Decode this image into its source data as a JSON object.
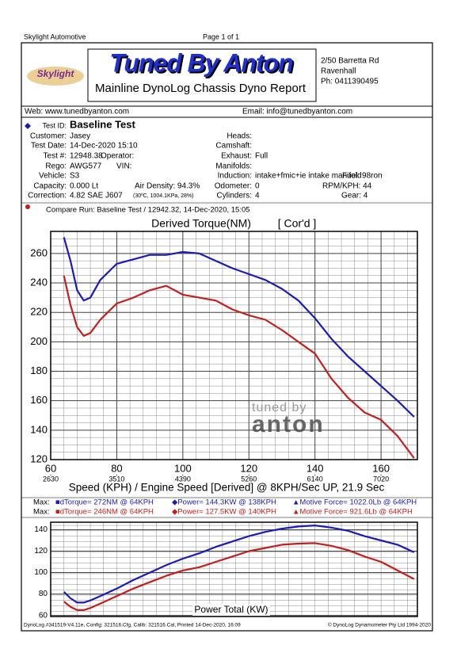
{
  "header": {
    "company": "Skylight Automotive",
    "page": "Page 1 of 1"
  },
  "logo": {
    "brand": "Skylight",
    "title": "Tuned By Anton",
    "subtitle": "Mainline DynoLog Chassis Dyno Report",
    "address": [
      "2/50 Barretta Rd",
      "Ravenhall",
      "Ph: 0411390495"
    ]
  },
  "contact": {
    "web": "Web: www.tunedbyanton.com",
    "email": "Email: info@tunedbyanton.com"
  },
  "test": {
    "id_label": "Test ID:",
    "id": "Baseline Test",
    "left": [
      {
        "label": "Customer:",
        "value": "Jasey"
      },
      {
        "label": "Test Date:",
        "value": "14-Dec-2020 15:10"
      },
      {
        "label": "Test #:",
        "value": "12948.38",
        "extra": "Operator:"
      },
      {
        "label": "Rego:",
        "value": "AWG577",
        "extra": "VIN:"
      },
      {
        "label": "Vehicle:",
        "value": "S3"
      },
      {
        "label": "Capacity:",
        "value": "0.000 Lt",
        "extra": "Air Density: 94.3%"
      },
      {
        "label": "Correction:",
        "value": "4.82 SAE J607",
        "extra": "(30ºC, 1004.1KPa, 28%)"
      }
    ],
    "right": [
      {
        "label": "Heads:"
      },
      {
        "label": "Camshaft:"
      },
      {
        "label": "Exhaust:",
        "value": "Full"
      },
      {
        "label": "Manifolds:"
      },
      {
        "label": "Induction:",
        "value": "intake+fmic+ie intake manifold",
        "extra": "Fuel: 98ron"
      },
      {
        "label": "Odometer:",
        "value": "0",
        "extra": "RPM/KPH: 44"
      },
      {
        "label": "Cylinders:",
        "value": "4",
        "extra": "Gear: 4"
      }
    ],
    "compare": "Compare Run:   Baseline Test / 12942.32,   14-Dec-2020,    15:05"
  },
  "chart_data": [
    {
      "type": "line",
      "title": "Derived Torque(NM)",
      "subtitle": "[ Cor'd ]",
      "x_label": "Speed (KPH) / Engine Speed [Derived] @ 8KPH/Sec UP, 21.9 Sec",
      "x": [
        64,
        66,
        68,
        70,
        72,
        75,
        80,
        85,
        90,
        95,
        100,
        105,
        110,
        115,
        120,
        125,
        130,
        135,
        140,
        145,
        150,
        155,
        160,
        165,
        170
      ],
      "series": [
        {
          "name": "Baseline Test",
          "color": "#1c1cb4",
          "values": [
            271,
            255,
            235,
            228,
            230,
            242,
            253,
            256,
            259,
            259,
            261,
            260,
            255,
            250,
            246,
            242,
            236,
            228,
            216,
            202,
            190,
            180,
            170,
            160,
            149
          ]
        },
        {
          "name": "Baseline Test / 12942.32",
          "color": "#c41e1e",
          "values": [
            245,
            225,
            210,
            204,
            206,
            215,
            226,
            230,
            235,
            238,
            232,
            230,
            228,
            222,
            218,
            215,
            208,
            200,
            192,
            175,
            162,
            152,
            147,
            136,
            121
          ]
        }
      ],
      "xlim": [
        60,
        171
      ],
      "ylim": [
        120,
        275
      ],
      "xticks": [
        60,
        80,
        100,
        120,
        140,
        160
      ],
      "xticks2": [
        {
          "value": 60,
          "label": "2630"
        },
        {
          "value": 80,
          "label": "3510"
        },
        {
          "value": 100,
          "label": "4390"
        },
        {
          "value": 120,
          "label": "5260"
        },
        {
          "value": 140,
          "label": "6140"
        },
        {
          "value": 160,
          "label": "7020"
        }
      ],
      "yticks": [
        120,
        140,
        160,
        180,
        200,
        220,
        240,
        260
      ],
      "grid": true
    },
    {
      "type": "line",
      "title": "Power Total (KW)",
      "x": [
        64,
        66,
        68,
        70,
        72,
        75,
        80,
        85,
        90,
        95,
        100,
        105,
        110,
        115,
        120,
        125,
        130,
        135,
        140,
        145,
        150,
        155,
        160,
        165,
        170
      ],
      "series": [
        {
          "name": "Baseline Test",
          "color": "#1c1cb4",
          "values": [
            82,
            76,
            72,
            72,
            74,
            78,
            85,
            93,
            100,
            107,
            113,
            118,
            124,
            129,
            134,
            138,
            141,
            143,
            144,
            142,
            139,
            134,
            130,
            126,
            119
          ]
        },
        {
          "name": "Baseline Test / 12942.32",
          "color": "#c41e1e",
          "values": [
            73,
            68,
            65,
            65,
            67,
            71,
            78,
            85,
            91,
            97,
            102,
            105,
            110,
            115,
            120,
            123,
            126,
            127,
            127.5,
            125,
            121,
            115,
            110,
            102,
            94
          ]
        }
      ],
      "xlim": [
        60,
        171
      ],
      "ylim": [
        59,
        147
      ],
      "yticks": [
        60,
        80,
        100,
        120,
        140
      ],
      "grid": true
    }
  ],
  "max": [
    {
      "label": "Max:",
      "items": [
        "■dTorque= 272NM @ 64KPH",
        "◆Power= 144.3KW @ 138KPH",
        "▲Motive Force= 1022.0Lb @ 64KPH"
      ]
    },
    {
      "label": "Max:",
      "items": [
        "■dTorque= 246NM @ 64KPH",
        "◆Power= 127.5KW @ 140KPH",
        "▲Motive Force= 921.6Lb @ 64KPH"
      ]
    }
  ],
  "watermark": [
    "tuned by",
    "anton"
  ],
  "footer": {
    "left": "DynoLog #341519-V4.11e, Config: 321516.Cfg, Calib: 321516.Cal, Printed 14-Dec-2020, 16:09",
    "right": "© DynoLog Dynamometer Pty Ltd 1994-2020"
  }
}
